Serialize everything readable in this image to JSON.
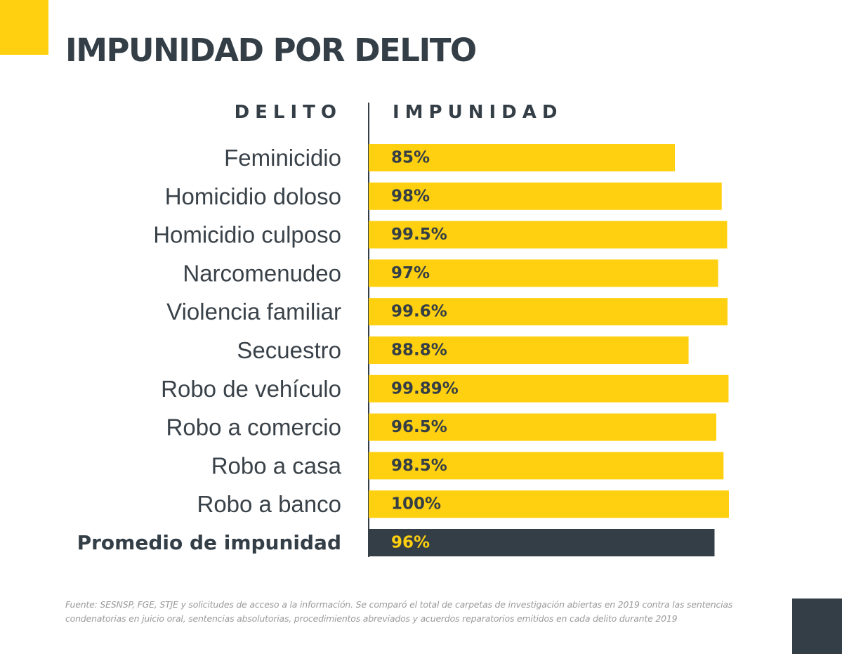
{
  "title": "IMPUNIDAD POR DELITO",
  "colors": {
    "accent": "#FFD010",
    "dark": "#343E46",
    "label": "#3A4249",
    "footnote": "#9A9A9A"
  },
  "headers": {
    "category": "DELITO",
    "value": "IMPUNIDAD"
  },
  "chart_data": {
    "type": "bar",
    "orientation": "horizontal",
    "xlim": [
      0,
      100
    ],
    "categories": [
      "Feminicidio",
      "Homicidio doloso",
      "Homicidio culposo",
      "Narcomenudeo",
      "Violencia familiar",
      "Secuestro",
      "Robo de vehículo",
      "Robo a comercio",
      "Robo a casa",
      "Robo a banco",
      "Promedio de impunidad"
    ],
    "values": [
      85,
      98,
      99.5,
      97,
      99.6,
      88.8,
      99.89,
      96.5,
      98.5,
      100,
      96
    ],
    "value_labels": [
      "85%",
      "98%",
      "99.5%",
      "97%",
      "99.6%",
      "88.8%",
      "99.89%",
      "96.5%",
      "98.5%",
      "100%",
      "96%"
    ],
    "highlight": [
      "Promedio de impunidad"
    ]
  },
  "footnote": "Fuente: SESNSP, FGE, STJE y solicitudes de acceso a la información. Se comparó el total de carpetas de investigación abiertas en 2019 contra las sentencias condenatorias en juicio oral, sentencias absolutorias, procedimientos abreviados y acuerdos reparatorios emitidos en cada delito durante 2019"
}
